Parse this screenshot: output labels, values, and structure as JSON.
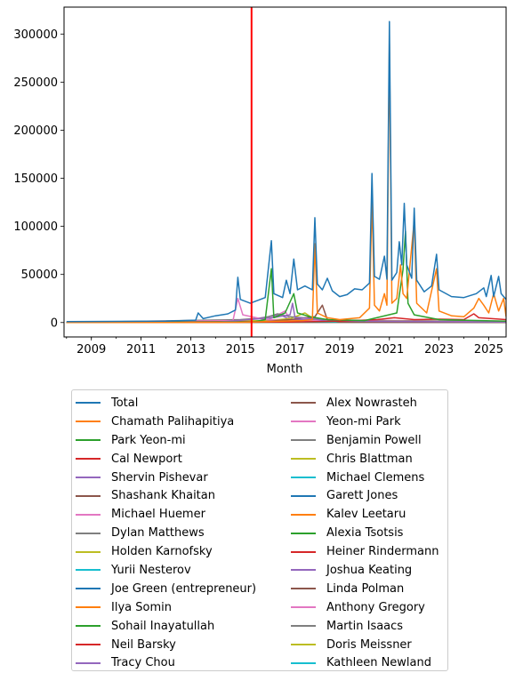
{
  "chart_data": {
    "type": "line",
    "xlabel": "Month",
    "ylabel": "",
    "title": "",
    "xlim": [
      2007.9,
      2025.7
    ],
    "ylim": [
      -15000,
      328000
    ],
    "x_ticks": [
      2009,
      2011,
      2013,
      2015,
      2017,
      2019,
      2021,
      2023,
      2025
    ],
    "x_tick_labels": [
      "2009",
      "2011",
      "2013",
      "2015",
      "2017",
      "2019",
      "2021",
      "2023",
      "2025"
    ],
    "y_ticks": [
      0,
      50000,
      100000,
      150000,
      200000,
      250000,
      300000
    ],
    "y_tick_labels": [
      "0",
      "50000",
      "100000",
      "150000",
      "200000",
      "250000",
      "300000"
    ],
    "vline": {
      "x": 2015.45,
      "color": "#ff0000"
    },
    "legend_position": "below",
    "legend_columns": 2,
    "series": [
      {
        "name": "Total",
        "color": "#1f77b4",
        "points": [
          [
            2008,
            1000
          ],
          [
            2012,
            1500
          ],
          [
            2013.2,
            2500
          ],
          [
            2013.3,
            10000
          ],
          [
            2013.5,
            4000
          ],
          [
            2014,
            7000
          ],
          [
            2014.5,
            9000
          ],
          [
            2014.8,
            13000
          ],
          [
            2014.9,
            47000
          ],
          [
            2015,
            24000
          ],
          [
            2015.4,
            20000
          ],
          [
            2015.8,
            24000
          ],
          [
            2016,
            26000
          ],
          [
            2016.25,
            85000
          ],
          [
            2016.35,
            30000
          ],
          [
            2016.7,
            26000
          ],
          [
            2016.85,
            44000
          ],
          [
            2017,
            30000
          ],
          [
            2017.15,
            66000
          ],
          [
            2017.3,
            34000
          ],
          [
            2017.6,
            38000
          ],
          [
            2017.9,
            34000
          ],
          [
            2018.0,
            109000
          ],
          [
            2018.1,
            40000
          ],
          [
            2018.3,
            34000
          ],
          [
            2018.5,
            46000
          ],
          [
            2018.7,
            33000
          ],
          [
            2019,
            27000
          ],
          [
            2019.3,
            29000
          ],
          [
            2019.6,
            35000
          ],
          [
            2019.9,
            34000
          ],
          [
            2020.2,
            41000
          ],
          [
            2020.3,
            155000
          ],
          [
            2020.4,
            48000
          ],
          [
            2020.6,
            45000
          ],
          [
            2020.8,
            69000
          ],
          [
            2020.9,
            45000
          ],
          [
            2021.0,
            313000
          ],
          [
            2021.1,
            44000
          ],
          [
            2021.3,
            52000
          ],
          [
            2021.4,
            84000
          ],
          [
            2021.5,
            60000
          ],
          [
            2021.6,
            124000
          ],
          [
            2021.7,
            60000
          ],
          [
            2021.9,
            46000
          ],
          [
            2022.0,
            119000
          ],
          [
            2022.1,
            44000
          ],
          [
            2022.4,
            32000
          ],
          [
            2022.7,
            38000
          ],
          [
            2022.9,
            71000
          ],
          [
            2023.0,
            34000
          ],
          [
            2023.5,
            27000
          ],
          [
            2024,
            26000
          ],
          [
            2024.5,
            30000
          ],
          [
            2024.8,
            36000
          ],
          [
            2024.9,
            27000
          ],
          [
            2025.1,
            49000
          ],
          [
            2025.2,
            27000
          ],
          [
            2025.4,
            48000
          ],
          [
            2025.5,
            30000
          ],
          [
            2025.7,
            24000
          ]
        ]
      },
      {
        "name": "Chamath Palihapitiya",
        "color": "#ff7f0e",
        "points": [
          [
            2008,
            0
          ],
          [
            2015,
            200
          ],
          [
            2016,
            1000
          ],
          [
            2017.5,
            2000
          ],
          [
            2017.9,
            3000
          ],
          [
            2018.0,
            82000
          ],
          [
            2018.1,
            10000
          ],
          [
            2018.5,
            5000
          ],
          [
            2019,
            3000
          ],
          [
            2019.8,
            5000
          ],
          [
            2020.2,
            15000
          ],
          [
            2020.3,
            128000
          ],
          [
            2020.4,
            18000
          ],
          [
            2020.6,
            12000
          ],
          [
            2020.8,
            30000
          ],
          [
            2020.9,
            18000
          ],
          [
            2021.0,
            290000
          ],
          [
            2021.1,
            20000
          ],
          [
            2021.3,
            25000
          ],
          [
            2021.45,
            60000
          ],
          [
            2021.55,
            30000
          ],
          [
            2021.7,
            25000
          ],
          [
            2022.0,
            106000
          ],
          [
            2022.1,
            20000
          ],
          [
            2022.5,
            10000
          ],
          [
            2022.9,
            56000
          ],
          [
            2023.0,
            12000
          ],
          [
            2023.5,
            7000
          ],
          [
            2024,
            6000
          ],
          [
            2024.4,
            15000
          ],
          [
            2024.6,
            25000
          ],
          [
            2024.8,
            18000
          ],
          [
            2025.0,
            10000
          ],
          [
            2025.2,
            30000
          ],
          [
            2025.4,
            12000
          ],
          [
            2025.6,
            25000
          ],
          [
            2025.7,
            6000
          ]
        ]
      },
      {
        "name": "Park Yeon-mi",
        "color": "#2ca02c",
        "points": [
          [
            2008,
            0
          ],
          [
            2015.5,
            500
          ],
          [
            2016,
            3000
          ],
          [
            2016.25,
            56000
          ],
          [
            2016.35,
            5000
          ],
          [
            2016.8,
            10000
          ],
          [
            2017.15,
            30000
          ],
          [
            2017.3,
            10000
          ],
          [
            2017.8,
            6000
          ],
          [
            2018.5,
            3000
          ],
          [
            2020,
            2000
          ],
          [
            2021.3,
            10000
          ],
          [
            2021.55,
            55000
          ],
          [
            2021.65,
            95000
          ],
          [
            2021.75,
            20000
          ],
          [
            2022.0,
            8000
          ],
          [
            2023,
            3000
          ],
          [
            2025.7,
            1500
          ]
        ]
      },
      {
        "name": "Cal Newport",
        "color": "#d62728",
        "points": [
          [
            2008,
            0
          ],
          [
            2017,
            500
          ],
          [
            2019,
            1500
          ],
          [
            2020.5,
            3000
          ],
          [
            2021.2,
            5000
          ],
          [
            2022,
            3000
          ],
          [
            2023,
            3500
          ],
          [
            2024,
            3000
          ],
          [
            2024.4,
            9000
          ],
          [
            2024.6,
            5000
          ],
          [
            2025.7,
            3000
          ]
        ]
      },
      {
        "name": "Shervin Pishevar",
        "color": "#9467bd",
        "points": [
          [
            2008,
            0
          ],
          [
            2014,
            300
          ],
          [
            2016.3,
            5000
          ],
          [
            2017,
            8000
          ],
          [
            2017.1,
            20000
          ],
          [
            2017.2,
            5000
          ],
          [
            2017.9,
            4000
          ],
          [
            2018.5,
            1500
          ],
          [
            2025.7,
            500
          ]
        ]
      },
      {
        "name": "Shashank Khaitan",
        "color": "#8c564b",
        "points": [
          [
            2008,
            0
          ],
          [
            2016,
            1000
          ],
          [
            2017,
            3000
          ],
          [
            2018,
            6000
          ],
          [
            2018.3,
            18000
          ],
          [
            2018.5,
            3000
          ],
          [
            2019,
            500
          ],
          [
            2025.7,
            200
          ]
        ]
      },
      {
        "name": "Michael Huemer",
        "color": "#e377c2",
        "points": [
          [
            2008,
            0
          ],
          [
            2014.7,
            2000
          ],
          [
            2014.9,
            25000
          ],
          [
            2015.1,
            8000
          ],
          [
            2016,
            3000
          ],
          [
            2017,
            2000
          ],
          [
            2025.7,
            500
          ]
        ]
      },
      {
        "name": "Dylan Matthews",
        "color": "#7f7f7f",
        "points": [
          [
            2008,
            0
          ],
          [
            2015,
            3000
          ],
          [
            2016,
            5000
          ],
          [
            2016.5,
            9000
          ],
          [
            2017,
            6000
          ],
          [
            2018,
            4000
          ],
          [
            2019,
            2000
          ],
          [
            2025.7,
            1000
          ]
        ]
      },
      {
        "name": "Holden Karnofsky",
        "color": "#bcbd22",
        "points": [
          [
            2008,
            0
          ],
          [
            2016,
            2000
          ],
          [
            2017,
            4000
          ],
          [
            2017.6,
            10000
          ],
          [
            2018,
            3000
          ],
          [
            2020,
            2000
          ],
          [
            2025.7,
            1000
          ]
        ]
      },
      {
        "name": "Yurii Nesterov",
        "color": "#17becf",
        "points": [
          [
            2008,
            0
          ],
          [
            2016,
            500
          ],
          [
            2018,
            1000
          ],
          [
            2025.7,
            800
          ]
        ]
      },
      {
        "name": "Joe Green (entrepreneur)",
        "color": "#1f77b4",
        "points": [
          [
            2008,
            0
          ],
          [
            2013,
            500
          ],
          [
            2016,
            1000
          ],
          [
            2025.7,
            500
          ]
        ]
      },
      {
        "name": "Ilya Somin",
        "color": "#ff7f0e",
        "points": [
          [
            2008,
            0
          ],
          [
            2015,
            1000
          ],
          [
            2017,
            2000
          ],
          [
            2020,
            1500
          ],
          [
            2025.7,
            1000
          ]
        ]
      },
      {
        "name": "Sohail Inayatullah",
        "color": "#2ca02c",
        "points": [
          [
            2008,
            0
          ],
          [
            2013,
            300
          ],
          [
            2016,
            800
          ],
          [
            2025.7,
            500
          ]
        ]
      },
      {
        "name": "Neil Barsky",
        "color": "#d62728",
        "points": [
          [
            2008,
            0
          ],
          [
            2016,
            800
          ],
          [
            2017,
            1500
          ],
          [
            2025.7,
            500
          ]
        ]
      },
      {
        "name": "Tracy Chou",
        "color": "#9467bd",
        "points": [
          [
            2008,
            0
          ],
          [
            2015,
            1500
          ],
          [
            2016.6,
            8000
          ],
          [
            2017,
            3000
          ],
          [
            2025.7,
            800
          ]
        ]
      },
      {
        "name": "Alex Nowrasteh",
        "color": "#8c564b",
        "points": [
          [
            2008,
            0
          ],
          [
            2015,
            800
          ],
          [
            2018,
            1500
          ],
          [
            2025.7,
            700
          ]
        ]
      },
      {
        "name": "Yeon-mi Park",
        "color": "#e377c2",
        "points": [
          [
            2008,
            0
          ],
          [
            2016,
            1000
          ],
          [
            2016.8,
            12000
          ],
          [
            2017,
            3000
          ],
          [
            2025.7,
            600
          ]
        ]
      },
      {
        "name": "Benjamin Powell",
        "color": "#7f7f7f",
        "points": [
          [
            2008,
            0
          ],
          [
            2015,
            600
          ],
          [
            2018,
            1000
          ],
          [
            2025.7,
            500
          ]
        ]
      },
      {
        "name": "Chris Blattman",
        "color": "#bcbd22",
        "points": [
          [
            2008,
            0
          ],
          [
            2015,
            1500
          ],
          [
            2017,
            2500
          ],
          [
            2025.7,
            1000
          ]
        ]
      },
      {
        "name": "Michael Clemens",
        "color": "#17becf",
        "points": [
          [
            2008,
            0
          ],
          [
            2015,
            800
          ],
          [
            2025.7,
            600
          ]
        ]
      },
      {
        "name": "Garett Jones",
        "color": "#1f77b4",
        "points": [
          [
            2008,
            0
          ],
          [
            2015,
            700
          ],
          [
            2025.7,
            500
          ]
        ]
      },
      {
        "name": "Kalev Leetaru",
        "color": "#ff7f0e",
        "points": [
          [
            2008,
            0
          ],
          [
            2016,
            800
          ],
          [
            2025.7,
            400
          ]
        ]
      },
      {
        "name": "Alexia Tsotsis",
        "color": "#2ca02c",
        "points": [
          [
            2008,
            0
          ],
          [
            2013,
            800
          ],
          [
            2016,
            600
          ],
          [
            2025.7,
            300
          ]
        ]
      },
      {
        "name": "Heiner Rindermann",
        "color": "#d62728",
        "points": [
          [
            2008,
            0
          ],
          [
            2016,
            500
          ],
          [
            2025.7,
            400
          ]
        ]
      },
      {
        "name": "Joshua Keating",
        "color": "#9467bd",
        "points": [
          [
            2008,
            0
          ],
          [
            2016,
            500
          ],
          [
            2025.7,
            300
          ]
        ]
      },
      {
        "name": "Linda Polman",
        "color": "#8c564b",
        "points": [
          [
            2008,
            0
          ],
          [
            2016,
            400
          ],
          [
            2025.7,
            300
          ]
        ]
      },
      {
        "name": "Anthony Gregory",
        "color": "#e377c2",
        "points": [
          [
            2008,
            0
          ],
          [
            2016,
            400
          ],
          [
            2025.7,
            200
          ]
        ]
      },
      {
        "name": "Martin Isaacs",
        "color": "#7f7f7f",
        "points": [
          [
            2008,
            0
          ],
          [
            2016,
            300
          ],
          [
            2025.7,
            200
          ]
        ]
      },
      {
        "name": "Doris Meissner",
        "color": "#bcbd22",
        "points": [
          [
            2008,
            0
          ],
          [
            2016,
            300
          ],
          [
            2025.7,
            200
          ]
        ]
      },
      {
        "name": "Kathleen Newland",
        "color": "#17becf",
        "points": [
          [
            2008,
            0
          ],
          [
            2016,
            200
          ],
          [
            2025.7,
            200
          ]
        ]
      }
    ]
  }
}
